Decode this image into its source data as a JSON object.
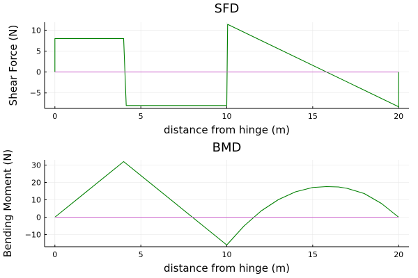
{
  "colors": {
    "series": "#008000",
    "baseline": "#cc66cc",
    "grid": "#e6e6e6",
    "axis": "#000000"
  },
  "chart_data": [
    {
      "type": "line",
      "title": "SFD",
      "xlabel": "distance from hinge (m)",
      "ylabel": "Shear Force (N)",
      "xlim": [
        -0.6,
        20.6
      ],
      "ylim": [
        -8.7,
        11.9
      ],
      "xticks": [
        0,
        5,
        10,
        15,
        20
      ],
      "yticks": [
        -5,
        0,
        5,
        10
      ],
      "grid": true,
      "series": [
        {
          "role": "data",
          "x": [
            0,
            0,
            4,
            4.15,
            10,
            10.05,
            20,
            20
          ],
          "y": [
            0,
            8,
            8,
            -8,
            -8,
            11.4,
            -8.3,
            0
          ]
        },
        {
          "role": "baseline",
          "x": [
            0,
            20
          ],
          "y": [
            0,
            0
          ]
        }
      ]
    },
    {
      "type": "line",
      "title": "BMD",
      "xlabel": "distance from hinge (m)",
      "ylabel": "Bending Moment (N)",
      "xlim": [
        -0.6,
        20.6
      ],
      "ylim": [
        -17,
        33
      ],
      "xticks": [
        0,
        5,
        10,
        15,
        20
      ],
      "yticks": [
        -10,
        0,
        10,
        20,
        30
      ],
      "grid": true,
      "series": [
        {
          "role": "data",
          "x": [
            0,
            4,
            10,
            11,
            12,
            13,
            14,
            15,
            15.8,
            16.5,
            17,
            18,
            19,
            20
          ],
          "y": [
            0,
            32,
            -16,
            -5.1,
            3.6,
            10.1,
            14.6,
            17.1,
            17.6,
            17.4,
            16.6,
            13.6,
            7.9,
            0
          ]
        },
        {
          "role": "baseline",
          "x": [
            0,
            20
          ],
          "y": [
            0,
            0
          ]
        }
      ]
    }
  ]
}
